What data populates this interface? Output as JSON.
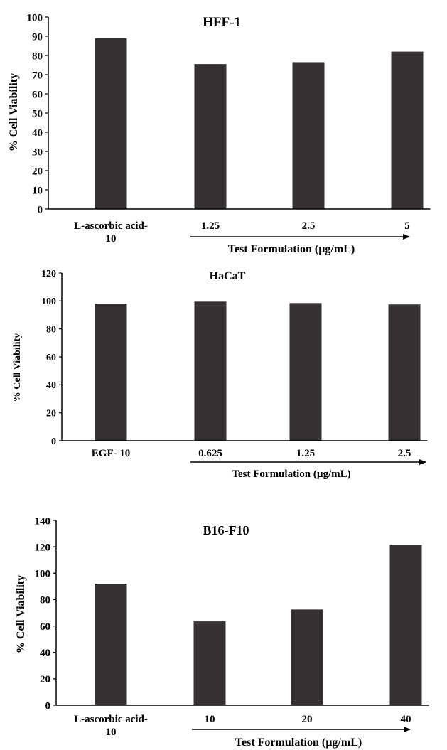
{
  "chart_data": [
    {
      "type": "bar",
      "title": "HFF-1",
      "ylabel": "% Cell Viability",
      "xlabel": "Test Formulation  (µg/mL)",
      "categories": [
        "L-ascorbic acid-\n10",
        "1.25",
        "2.5",
        "5"
      ],
      "values": [
        89,
        75.5,
        76.5,
        82
      ],
      "ylim": [
        0,
        100
      ],
      "yticks": [
        0,
        10,
        20,
        30,
        40,
        50,
        60,
        70,
        80,
        90,
        100
      ],
      "bar_color": "#363131",
      "grid": false
    },
    {
      "type": "bar",
      "title": "HaCaT",
      "ylabel": "% Cell Viability",
      "xlabel": "Test Formulation  (µg/mL)",
      "categories": [
        "EGF- 10",
        "0.625",
        "1.25",
        "2.5"
      ],
      "values": [
        98,
        99.5,
        98.5,
        97.5
      ],
      "ylim": [
        0,
        120
      ],
      "yticks": [
        0,
        20,
        40,
        60,
        80,
        100,
        120
      ],
      "bar_color": "#363131",
      "grid": false
    },
    {
      "type": "bar",
      "title": "B16-F10",
      "ylabel": "% Cell Viability",
      "xlabel": "Test Formulation  (µg/mL)",
      "categories": [
        "L-ascorbic acid-\n10",
        "10",
        "20",
        "40"
      ],
      "values": [
        92,
        63.5,
        72.5,
        121.5
      ],
      "ylim": [
        0,
        140
      ],
      "yticks": [
        0,
        20,
        40,
        60,
        80,
        100,
        120,
        140
      ],
      "bar_color": "#363131",
      "grid": false
    }
  ]
}
